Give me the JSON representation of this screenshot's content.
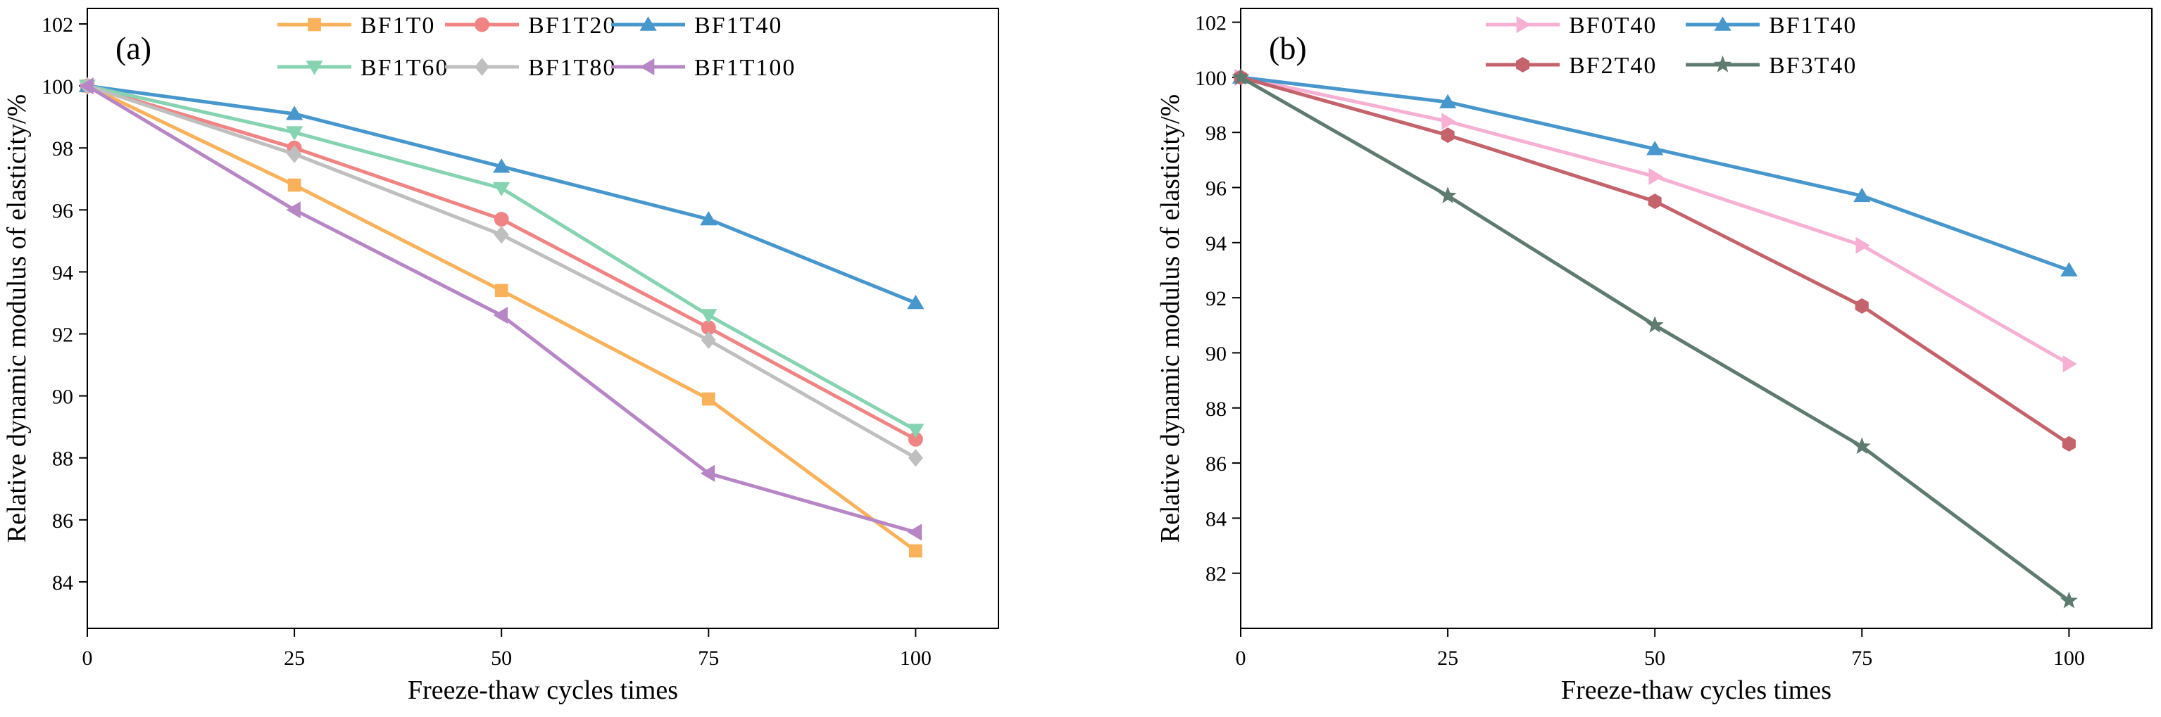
{
  "chart_data": [
    {
      "type": "line",
      "panel_label": "(a)",
      "title": "",
      "xlabel": "Freeze-thaw cycles times",
      "ylabel": "Relative dynamic modulus of elasticity/%",
      "xlim": [
        0,
        110
      ],
      "ylim": [
        82.5,
        102.5
      ],
      "xticks": [
        0,
        25,
        50,
        75,
        100
      ],
      "yticks": [
        84,
        86,
        88,
        90,
        92,
        94,
        96,
        98,
        100,
        102
      ],
      "x": [
        0,
        25,
        50,
        75,
        100
      ],
      "legend_position": "top",
      "legend_columns": 3,
      "grid": false,
      "series": [
        {
          "name": "BF1T0",
          "values": [
            100,
            96.8,
            93.4,
            89.9,
            85.0
          ],
          "color": "#F9B25A",
          "marker": "square"
        },
        {
          "name": "BF1T20",
          "values": [
            100,
            98.0,
            95.7,
            92.2,
            88.6
          ],
          "color": "#F08383",
          "marker": "circle"
        },
        {
          "name": "BF1T40",
          "values": [
            100,
            99.1,
            97.4,
            95.7,
            93.0
          ],
          "color": "#4797CD",
          "marker": "triangle-up"
        },
        {
          "name": "BF1T60",
          "values": [
            100,
            98.5,
            96.7,
            92.6,
            88.9
          ],
          "color": "#86D3B2",
          "marker": "triangle-down"
        },
        {
          "name": "BF1T80",
          "values": [
            100,
            97.8,
            95.2,
            91.8,
            88.0
          ],
          "color": "#BFBFBF",
          "marker": "diamond"
        },
        {
          "name": "BF1T100",
          "values": [
            100,
            96.0,
            92.6,
            87.5,
            85.6
          ],
          "color": "#B786C5",
          "marker": "triangle-left"
        }
      ]
    },
    {
      "type": "line",
      "panel_label": "(b)",
      "title": "",
      "xlabel": "Freeze-thaw cycles times",
      "ylabel": "Relative dynamic modulus of elasticity/%",
      "xlim": [
        0,
        110
      ],
      "ylim": [
        80,
        102.5
      ],
      "xticks": [
        0,
        25,
        50,
        75,
        100
      ],
      "yticks": [
        82,
        84,
        86,
        88,
        90,
        92,
        94,
        96,
        98,
        100,
        102
      ],
      "x": [
        0,
        25,
        50,
        75,
        100
      ],
      "legend_position": "top",
      "legend_columns": 2,
      "grid": false,
      "series": [
        {
          "name": "BF0T40",
          "values": [
            100,
            98.4,
            96.4,
            93.9,
            89.6
          ],
          "color": "#F6B0D3",
          "marker": "triangle-right"
        },
        {
          "name": "BF1T40",
          "values": [
            100,
            99.1,
            97.4,
            95.7,
            93.0
          ],
          "color": "#4797CD",
          "marker": "triangle-up"
        },
        {
          "name": "BF2T40",
          "values": [
            100,
            97.9,
            95.5,
            91.7,
            86.7
          ],
          "color": "#C4636B",
          "marker": "hexagon"
        },
        {
          "name": "BF3T40",
          "values": [
            100,
            95.7,
            91.0,
            86.6,
            81.0
          ],
          "color": "#5F7A6E",
          "marker": "star"
        }
      ]
    }
  ]
}
